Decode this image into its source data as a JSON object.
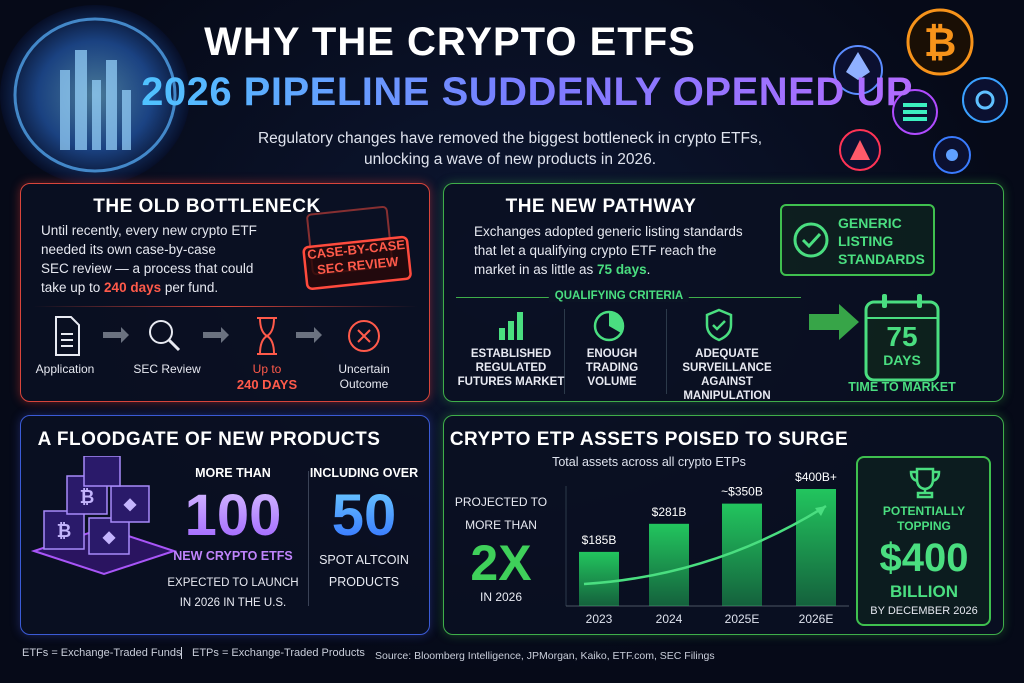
{
  "header": {
    "title_line1": "WHY THE CRYPTO ETFS",
    "title_line2": "2026 PIPELINE SUDDENLY OPENED UP",
    "subtitle": [
      "Regulatory changes have removed the biggest bottleneck in crypto ETFs,",
      "unlocking a wave of new products in 2026."
    ]
  },
  "old_bottleneck": {
    "title": "THE OLD BOTTLENECK",
    "body": [
      "Until recently, every new crypto ETF",
      "needed its own case-by-case",
      "SEC review — a process that could"
    ],
    "body_last": {
      "before": "take up to ",
      "highlight": "240 days",
      "after": " per fund."
    },
    "stamp": [
      "CASE-BY-CASE",
      "SEC REVIEW"
    ],
    "steps": [
      [
        "Application"
      ],
      [
        "SEC Review"
      ],
      [
        "Up to",
        "240 DAYS"
      ],
      [
        "Uncertain",
        "Outcome"
      ]
    ]
  },
  "new_pathway": {
    "title": "THE NEW PATHWAY",
    "body": [
      "Exchanges adopted generic listing standards",
      "that let a qualifying crypto ETF reach the"
    ],
    "body_last": {
      "before": "market in as little as ",
      "highlight": "75 days",
      "after": "."
    },
    "badge": [
      "GENERIC",
      "LISTING",
      "STANDARDS"
    ],
    "criteria_heading": "QUALIFYING CRITERIA",
    "criteria": [
      [
        "ESTABLISHED",
        "REGULATED",
        "FUTURES MARKET"
      ],
      [
        "ENOUGH",
        "TRADING",
        "VOLUME"
      ],
      [
        "ADEQUATE",
        "SURVEILLANCE",
        "AGAINST",
        "MANIPULATION"
      ]
    ],
    "calendar_number": "75",
    "calendar_unit": "DAYS",
    "calendar_caption": "TIME TO MARKET"
  },
  "floodgate": {
    "title": "A FLOODGATE OF NEW PRODUCTS",
    "stat1": {
      "pre": "MORE THAN",
      "number": "100",
      "label": "NEW CRYPTO ETFS",
      "notes": [
        "EXPECTED TO LAUNCH",
        "IN 2026 IN THE U.S."
      ]
    },
    "stat2": {
      "pre": "INCLUDING OVER",
      "number": "50",
      "notes": [
        "SPOT ALTCOIN",
        "PRODUCTS"
      ]
    }
  },
  "chart_data": {
    "type": "bar",
    "title": "CRYPTO ETP ASSETS POISED TO SURGE",
    "subtitle": "Total assets across all crypto ETPs",
    "categories": [
      "2023",
      "2024",
      "2025E",
      "2026E"
    ],
    "values": [
      185,
      281,
      350,
      400
    ],
    "value_labels": [
      "$185B",
      "$281B",
      "~$350B",
      "$400B+"
    ],
    "color": "#22c55e"
  },
  "assets_panel": {
    "left": [
      "PROJECTED TO",
      "MORE THAN"
    ],
    "left_big": "2X",
    "left_after": "IN 2026",
    "box": [
      "POTENTIALLY",
      "TOPPING"
    ],
    "box_big": "$400",
    "box_unit": "BILLION",
    "box_note": "BY DECEMBER 2026"
  },
  "footer": {
    "definitions": [
      "ETFs = Exchange-Traded Funds",
      "ETPs = Exchange-Traded Products"
    ],
    "source": "Source: Bloomberg Intelligence, JPMorgan, Kaiko, ETF.com, SEC Filings"
  }
}
